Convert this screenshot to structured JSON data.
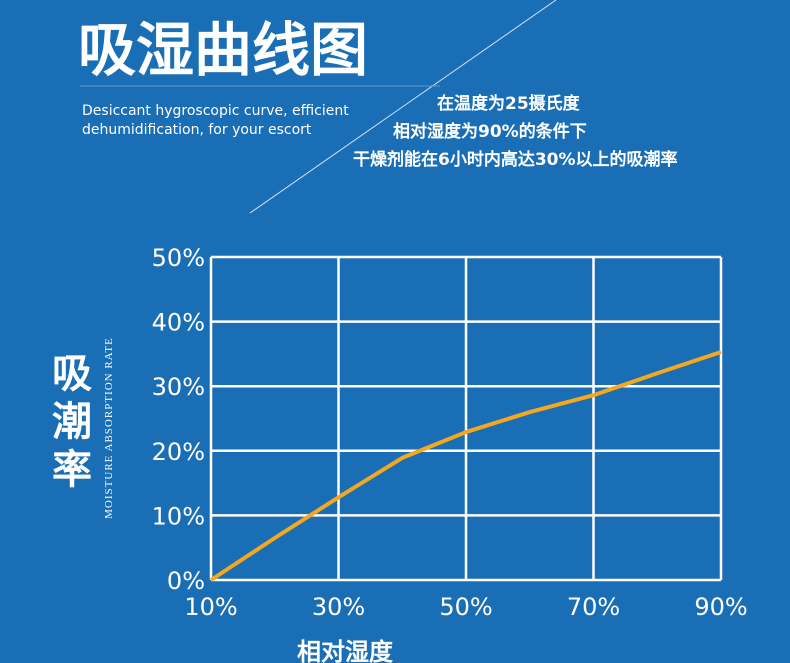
{
  "chart_data": {
    "type": "line",
    "title": "吸湿曲线图",
    "subtitle": [
      "Desiccant hygroscopic curve, efficient",
      "dehumidification, for your escort"
    ],
    "annotations": [
      "在温度为25摄氏度",
      "相对湿度为90%的条件下",
      "干燥剂能在6小时内高达30%以上的吸潮率"
    ],
    "y_label": "吸潮率",
    "y_label_en": "MOISTURE ABSORPTION RATE",
    "x_label": "相对湿度",
    "x": [
      10,
      20,
      30,
      40,
      50,
      60,
      70,
      80,
      90
    ],
    "series": [
      {
        "name": "吸潮率",
        "color": "#f5a81f",
        "values": [
          0,
          6.5,
          12.8,
          18.9,
          22.9,
          26,
          28.6,
          32,
          35.3
        ]
      }
    ],
    "xlim": [
      10,
      90
    ],
    "xticks": [
      {
        "value": 10,
        "label": "10%"
      },
      {
        "value": 30,
        "label": "30%"
      },
      {
        "value": 50,
        "label": "50%"
      },
      {
        "value": 70,
        "label": "70%"
      },
      {
        "value": 90,
        "label": "90%"
      }
    ],
    "ylim": [
      0,
      50
    ],
    "yticks": [
      {
        "value": 0,
        "label": "0%"
      },
      {
        "value": 10,
        "label": "10%"
      },
      {
        "value": 20,
        "label": "20%"
      },
      {
        "value": 30,
        "label": "30%"
      },
      {
        "value": 40,
        "label": "40%"
      },
      {
        "value": 50,
        "label": "50%"
      }
    ],
    "grid": true
  }
}
